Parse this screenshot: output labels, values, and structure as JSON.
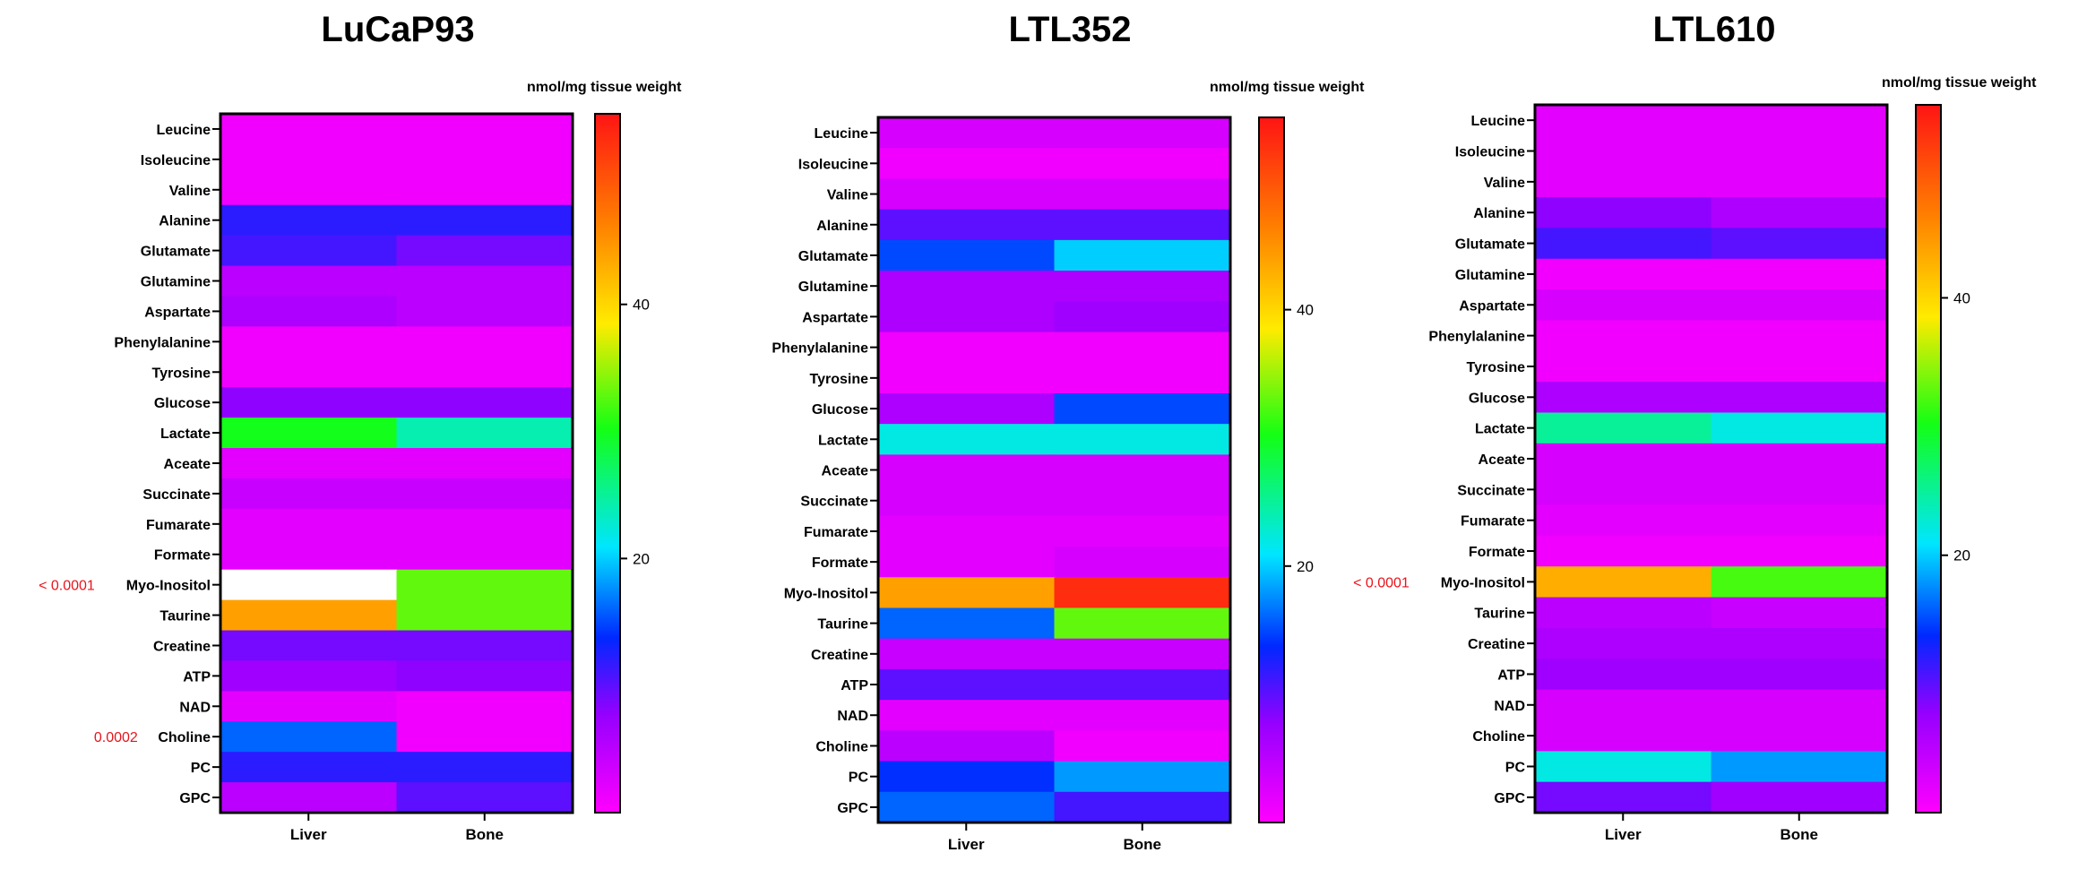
{
  "chart_data": [
    {
      "type": "heatmap",
      "title": "LuCaP93",
      "colorbar_label": "nmol/mg tissue weight",
      "colorbar_ticks": [
        20,
        40
      ],
      "color_range": [
        0,
        55
      ],
      "columns": [
        "Liver",
        "Bone"
      ],
      "rows": [
        "Leucine",
        "Isoleucine",
        "Valine",
        "Alanine",
        "Glutamate",
        "Glutamine",
        "Aspartate",
        "Phenylalanine",
        "Tyrosine",
        "Glucose",
        "Lactate",
        "Aceate",
        "Succinate",
        "Fumarate",
        "Formate",
        "Myo-Inositol",
        "Taurine",
        "Creatine",
        "ATP",
        "NAD",
        "Choline",
        "PC",
        "GPC"
      ],
      "values": [
        [
          1,
          1
        ],
        [
          1,
          1
        ],
        [
          1,
          1
        ],
        [
          12,
          12
        ],
        [
          11,
          9
        ],
        [
          5,
          5
        ],
        [
          6,
          5
        ],
        [
          1,
          1
        ],
        [
          1,
          1
        ],
        [
          8,
          8
        ],
        [
          30,
          24
        ],
        [
          2,
          2
        ],
        [
          4,
          4
        ],
        [
          2,
          2
        ],
        [
          2,
          2
        ],
        [
          null,
          33
        ],
        [
          44,
          33
        ],
        [
          9,
          9
        ],
        [
          7,
          8
        ],
        [
          2,
          1
        ],
        [
          16,
          1
        ],
        [
          12,
          12
        ],
        [
          5,
          10
        ]
      ],
      "p_values": [
        {
          "row": "Myo-Inositol",
          "label": "< 0.0001"
        },
        {
          "row": "Choline",
          "label": "0.0002"
        }
      ]
    },
    {
      "type": "heatmap",
      "title": "LTL352",
      "colorbar_label": "nmol/mg tissue weight",
      "colorbar_ticks": [
        20,
        40
      ],
      "color_range": [
        0,
        55
      ],
      "columns": [
        "Liver",
        "Bone"
      ],
      "rows": [
        "Leucine",
        "Isoleucine",
        "Valine",
        "Alanine",
        "Glutamate",
        "Glutamine",
        "Aspartate",
        "Phenylalanine",
        "Tyrosine",
        "Glucose",
        "Lactate",
        "Aceate",
        "Succinate",
        "Fumarate",
        "Formate",
        "Myo-Inositol",
        "Taurine",
        "Creatine",
        "ATP",
        "NAD",
        "Choline",
        "PC",
        "GPC"
      ],
      "values": [
        [
          3,
          3
        ],
        [
          1,
          1
        ],
        [
          3,
          3
        ],
        [
          10,
          10
        ],
        [
          15,
          20
        ],
        [
          6,
          6
        ],
        [
          6,
          7
        ],
        [
          1,
          1
        ],
        [
          1,
          1
        ],
        [
          6,
          15
        ],
        [
          22,
          22
        ],
        [
          3,
          3
        ],
        [
          3,
          3
        ],
        [
          2,
          2
        ],
        [
          2,
          3
        ],
        [
          44,
          53
        ],
        [
          16,
          33
        ],
        [
          4,
          4
        ],
        [
          10,
          10
        ],
        [
          2,
          2
        ],
        [
          5,
          1
        ],
        [
          14,
          18
        ],
        [
          16,
          11
        ]
      ],
      "p_values": []
    },
    {
      "type": "heatmap",
      "title": "LTL610",
      "colorbar_label": "nmol/mg tissue weight",
      "colorbar_ticks": [
        20,
        40
      ],
      "color_range": [
        0,
        55
      ],
      "columns": [
        "Liver",
        "Bone"
      ],
      "rows": [
        "Leucine",
        "Isoleucine",
        "Valine",
        "Alanine",
        "Glutamate",
        "Glutamine",
        "Aspartate",
        "Phenylalanine",
        "Tyrosine",
        "Glucose",
        "Lactate",
        "Aceate",
        "Succinate",
        "Fumarate",
        "Formate",
        "Myo-Inositol",
        "Taurine",
        "Creatine",
        "ATP",
        "NAD",
        "Choline",
        "PC",
        "GPC"
      ],
      "values": [
        [
          2,
          2
        ],
        [
          2,
          2
        ],
        [
          2,
          2
        ],
        [
          8,
          6
        ],
        [
          11,
          10
        ],
        [
          1,
          1
        ],
        [
          3,
          3
        ],
        [
          1,
          1
        ],
        [
          1,
          1
        ],
        [
          6,
          6
        ],
        [
          25,
          22
        ],
        [
          3,
          3
        ],
        [
          3,
          3
        ],
        [
          2,
          2
        ],
        [
          1,
          1
        ],
        [
          43,
          32
        ],
        [
          5,
          4
        ],
        [
          6,
          6
        ],
        [
          7,
          7
        ],
        [
          3,
          3
        ],
        [
          3,
          3
        ],
        [
          22,
          18
        ],
        [
          9,
          7
        ]
      ],
      "p_values": [
        {
          "row": "Myo-Inositol",
          "label": "< 0.0001"
        }
      ]
    }
  ]
}
